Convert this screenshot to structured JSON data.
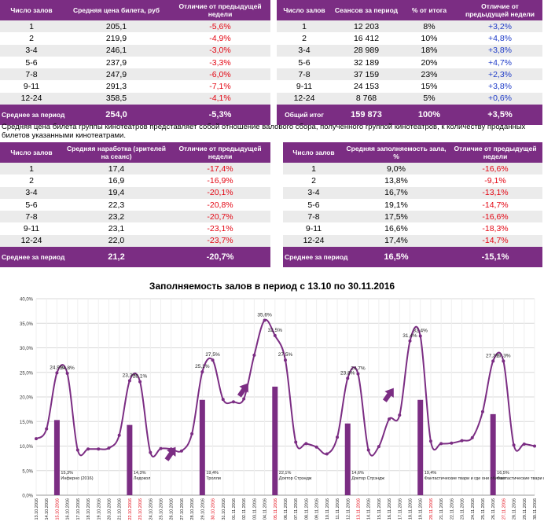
{
  "table1": {
    "headers": [
      "Число залов",
      "Средняя цена билета, руб",
      "Отличие от предыдущей недели"
    ],
    "rows": [
      [
        "1",
        "205,1",
        "-5,6%"
      ],
      [
        "2",
        "219,9",
        "-4,9%"
      ],
      [
        "3-4",
        "246,1",
        "-3,0%"
      ],
      [
        "5-6",
        "237,9",
        "-3,3%"
      ],
      [
        "7-8",
        "247,9",
        "-6,0%"
      ],
      [
        "9-11",
        "291,3",
        "-7,1%"
      ],
      [
        "12-24",
        "358,5",
        "-4,1%"
      ]
    ],
    "summary": [
      "Среднее за период",
      "254,0",
      "-5,3%"
    ]
  },
  "table2": {
    "headers": [
      "Число залов",
      "Сеансов за период",
      "% от итога",
      "Отличие от предыдущей недели"
    ],
    "rows": [
      [
        "1",
        "12 203",
        "8%",
        "+3,2%"
      ],
      [
        "2",
        "16 412",
        "10%",
        "+4,8%"
      ],
      [
        "3-4",
        "28 989",
        "18%",
        "+3,8%"
      ],
      [
        "5-6",
        "32 189",
        "20%",
        "+4,7%"
      ],
      [
        "7-8",
        "37 159",
        "23%",
        "+2,3%"
      ],
      [
        "9-11",
        "24 153",
        "15%",
        "+3,8%"
      ],
      [
        "12-24",
        "8 768",
        "5%",
        "+0,6%"
      ]
    ],
    "summary": [
      "Общий итог",
      "159 873",
      "100%",
      "+3,5%"
    ]
  },
  "note": "Средняя цена билета группы кинотеатров представляет собой отношение валового сбора, полученного группой кинотеатров, к количеству проданных билетов указанными кинотеатрами.",
  "table3": {
    "headers": [
      "Число залов",
      "Средняя наработка (зрителей на сеанс)",
      "Отличие от предыдущей недели"
    ],
    "rows": [
      [
        "1",
        "17,4",
        "-17,4%"
      ],
      [
        "2",
        "16,9",
        "-16,9%"
      ],
      [
        "3-4",
        "19,4",
        "-20,1%"
      ],
      [
        "5-6",
        "22,3",
        "-20,8%"
      ],
      [
        "7-8",
        "23,2",
        "-20,7%"
      ],
      [
        "9-11",
        "23,1",
        "-23,1%"
      ],
      [
        "12-24",
        "22,0",
        "-23,7%"
      ]
    ],
    "summary": [
      "Среднее за период",
      "21,2",
      "-20,7%"
    ]
  },
  "table4": {
    "headers": [
      "Число залов",
      "Средняя заполняемость зала, %",
      "Отличие от предыдущей недели"
    ],
    "rows": [
      [
        "1",
        "9,0%",
        "-16,6%"
      ],
      [
        "2",
        "13,8%",
        "-9,1%"
      ],
      [
        "3-4",
        "16,7%",
        "-13,1%"
      ],
      [
        "5-6",
        "19,1%",
        "-14,7%"
      ],
      [
        "7-8",
        "17,5%",
        "-16,6%"
      ],
      [
        "9-11",
        "16,6%",
        "-18,3%"
      ],
      [
        "12-24",
        "17,4%",
        "-14,7%"
      ]
    ],
    "summary": [
      "Среднее за период",
      "16,5%",
      "-15,1%"
    ]
  },
  "chart_data": {
    "type": "line",
    "title": "Заполняемость залов в период с 13.10 по 30.11.2016",
    "ylim": [
      0,
      40
    ],
    "yticks": [
      "0,0%",
      "5,0%",
      "10,0%",
      "15,0%",
      "20,0%",
      "25,0%",
      "30,0%",
      "35,0%",
      "40,0%"
    ],
    "categories": [
      "13.10.2016",
      "14.10.2016",
      "15.10.2016",
      "16.10.2016",
      "17.10.2016",
      "18.10.2016",
      "19.10.2016",
      "20.10.2016",
      "21.10.2016",
      "22.10.2016",
      "23.10.2016",
      "24.10.2016",
      "25.10.2016",
      "26.10.2016",
      "27.10.2016",
      "28.10.2016",
      "29.10.2016",
      "30.10.2016",
      "31.10.2016",
      "01.11.2016",
      "02.11.2016",
      "03.11.2016",
      "04.11.2016",
      "05.11.2016",
      "06.11.2016",
      "07.11.2016",
      "08.11.2016",
      "09.11.2016",
      "10.11.2016",
      "11.11.2016",
      "12.11.2016",
      "13.11.2016",
      "14.11.2016",
      "15.11.2016",
      "16.11.2016",
      "17.11.2016",
      "18.11.2016",
      "19.11.2016",
      "20.11.2016",
      "21.11.2016",
      "22.11.2016",
      "23.11.2016",
      "24.11.2016",
      "25.11.2016",
      "26.11.2016",
      "27.11.2016",
      "28.11.2016",
      "29.11.2016",
      "30.11.2016"
    ],
    "highlighted_dates": [
      2,
      9,
      10,
      17,
      23,
      31,
      38,
      45
    ],
    "series": [
      {
        "name": "Заполняемость",
        "values": [
          11.5,
          13.5,
          24.9,
          24.8,
          9.2,
          9.4,
          9.4,
          9.6,
          12.2,
          23.3,
          23.1,
          8.7,
          9.5,
          9.4,
          9.0,
          12.5,
          25.1,
          27.5,
          19.5,
          19.0,
          19.6,
          28.5,
          35.6,
          32.5,
          27.5,
          10.8,
          10.5,
          9.8,
          8.4,
          11.8,
          23.8,
          24.7,
          9.2,
          9.9,
          15.5,
          16.3,
          31.4,
          32.4,
          11.0,
          10.5,
          10.6,
          11.1,
          11.7,
          17.0,
          27.3,
          27.3,
          10.2,
          10.4,
          10.0
        ]
      }
    ],
    "point_labels": [
      {
        "index": 2,
        "text": "24,9%"
      },
      {
        "index": 3,
        "text": "24,8%"
      },
      {
        "index": 9,
        "text": "23,3%"
      },
      {
        "index": 10,
        "text": "23,1%"
      },
      {
        "index": 16,
        "text": "25,1%"
      },
      {
        "index": 17,
        "text": "27,5%"
      },
      {
        "index": 22,
        "text": "35,6%"
      },
      {
        "index": 23,
        "text": "32,5%"
      },
      {
        "index": 24,
        "text": "27,5%"
      },
      {
        "index": 30,
        "text": "23,8%"
      },
      {
        "index": 31,
        "text": "24,7%"
      },
      {
        "index": 36,
        "text": "31,4%"
      },
      {
        "index": 37,
        "text": "32,4%"
      },
      {
        "index": 44,
        "text": "27,3%"
      },
      {
        "index": 45,
        "text": "27,3%"
      }
    ],
    "bars": [
      {
        "index": 2,
        "value": 15.3,
        "label": "15,3%",
        "film": "Инферно (2016)"
      },
      {
        "index": 9,
        "value": 14.3,
        "label": "14,3%",
        "film": "Ледокол"
      },
      {
        "index": 16,
        "value": 19.4,
        "label": "19,4%",
        "film": "Тролли"
      },
      {
        "index": 23,
        "value": 22.1,
        "label": "22,1%",
        "film": "Доктор Стрэндж"
      },
      {
        "index": 30,
        "value": 14.6,
        "label": "14,6%",
        "film": "Доктор Стрэндж"
      },
      {
        "index": 37,
        "value": 19.4,
        "label": "19,4%",
        "film": "Фантастические твари и где они обитают"
      },
      {
        "index": 44,
        "value": 16.5,
        "label": "16,5%",
        "film": "Фантастические твари и где они обитают"
      }
    ],
    "arrows": [
      {
        "index": 13,
        "value": 8.5
      },
      {
        "index": 20,
        "value": 21.5
      },
      {
        "index": 34,
        "value": 20.5
      }
    ],
    "colors": {
      "line": "#7b2d83",
      "bar": "#7b2d83",
      "grid": "#d9d9d9",
      "highlight": "#e30613"
    }
  }
}
